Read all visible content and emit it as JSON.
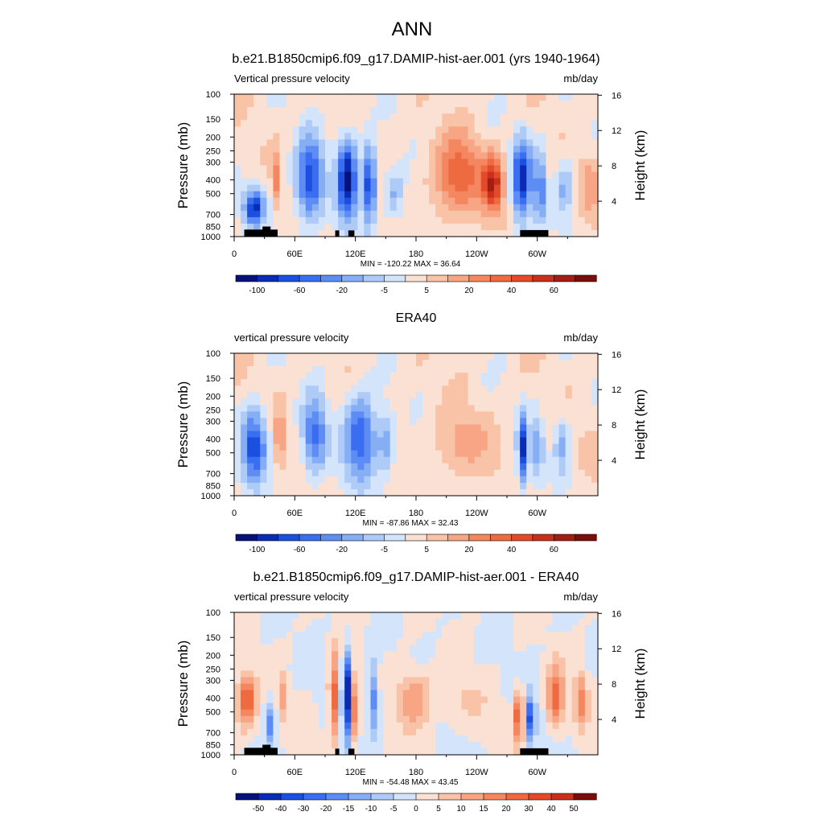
{
  "figure": {
    "title": "ANN"
  },
  "chart_data": [
    {
      "type": "heatmap",
      "title": "b.e21.B1850cmip6.f09_g17.DAMIP-hist-aer.001 (yrs 1940-1964)",
      "left_label": "Vertical pressure velocity",
      "right_label": "mb/day",
      "xlabel": "",
      "ylabel": "Pressure (mb)",
      "ylabel_right": "Height (km)",
      "x_ticks": [
        "0",
        "60E",
        "120E",
        "180",
        "120W",
        "60W"
      ],
      "x_tick_lon": [
        0,
        60,
        120,
        180,
        240,
        300
      ],
      "x_range": [
        0,
        360
      ],
      "y_ticks": [
        "100",
        "150",
        "200",
        "250",
        "300",
        "400",
        "500",
        "700",
        "850",
        "1000"
      ],
      "y_tick_p": [
        100,
        150,
        200,
        250,
        300,
        400,
        500,
        700,
        850,
        1000
      ],
      "y_range": [
        100,
        1000
      ],
      "y_scale": "log",
      "right_ticks": [
        "16",
        "12",
        "8",
        "4"
      ],
      "right_tick_km": [
        16,
        12,
        8,
        4
      ],
      "stats": "MIN = -120.22  MAX =  36.64",
      "min": -120.22,
      "max": 36.64,
      "colorbar_labels": [
        "-100",
        "-60",
        "-20",
        "-5",
        "5",
        "20",
        "40",
        "60"
      ],
      "colorbar_colors": [
        "#08107a",
        "#0a2bb4",
        "#1a4fe0",
        "#3b6df0",
        "#5e8cf5",
        "#86aef5",
        "#aecbf7",
        "#d4e4fa",
        "#fbe1d3",
        "#f9c3a8",
        "#f7a584",
        "#f48660",
        "#ee6a41",
        "#e4492a",
        "#c8301d",
        "#a41d13",
        "#7a0d0a"
      ],
      "topography_mask": true
    },
    {
      "type": "heatmap",
      "title": "ERA40",
      "left_label": "vertical pressure velocity",
      "right_label": "mb/day",
      "xlabel": "",
      "ylabel": "Pressure (mb)",
      "ylabel_right": "Height (km)",
      "x_ticks": [
        "0",
        "60E",
        "120E",
        "180",
        "120W",
        "60W"
      ],
      "x_tick_lon": [
        0,
        60,
        120,
        180,
        240,
        300
      ],
      "x_range": [
        0,
        360
      ],
      "y_ticks": [
        "100",
        "150",
        "200",
        "250",
        "300",
        "400",
        "500",
        "700",
        "850",
        "1000"
      ],
      "y_tick_p": [
        100,
        150,
        200,
        250,
        300,
        400,
        500,
        700,
        850,
        1000
      ],
      "y_range": [
        100,
        1000
      ],
      "y_scale": "log",
      "right_ticks": [
        "16",
        "12",
        "8",
        "4"
      ],
      "right_tick_km": [
        16,
        12,
        8,
        4
      ],
      "stats": "MIN = -87.86  MAX =  32.43",
      "min": -87.86,
      "max": 32.43,
      "colorbar_labels": [
        "-100",
        "-60",
        "-20",
        "-5",
        "5",
        "20",
        "40",
        "60"
      ],
      "colorbar_colors": [
        "#08107a",
        "#0a2bb4",
        "#1a4fe0",
        "#3b6df0",
        "#5e8cf5",
        "#86aef5",
        "#aecbf7",
        "#d4e4fa",
        "#fbe1d3",
        "#f9c3a8",
        "#f7a584",
        "#f48660",
        "#ee6a41",
        "#e4492a",
        "#c8301d",
        "#a41d13",
        "#7a0d0a"
      ],
      "topography_mask": false
    },
    {
      "type": "heatmap",
      "title": "b.e21.B1850cmip6.f09_g17.DAMIP-hist-aer.001 - ERA40",
      "left_label": "vertical pressure velocity",
      "right_label": "mb/day",
      "xlabel": "",
      "ylabel": "Pressure (mb)",
      "ylabel_right": "Height (km)",
      "x_ticks": [
        "0",
        "60E",
        "120E",
        "180",
        "120W",
        "60W"
      ],
      "x_tick_lon": [
        0,
        60,
        120,
        180,
        240,
        300
      ],
      "x_range": [
        0,
        360
      ],
      "y_ticks": [
        "100",
        "150",
        "200",
        "250",
        "300",
        "400",
        "500",
        "700",
        "850",
        "1000"
      ],
      "y_tick_p": [
        100,
        150,
        200,
        250,
        300,
        400,
        500,
        700,
        850,
        1000
      ],
      "y_range": [
        100,
        1000
      ],
      "y_scale": "log",
      "right_ticks": [
        "16",
        "12",
        "8",
        "4"
      ],
      "right_tick_km": [
        16,
        12,
        8,
        4
      ],
      "stats": "MIN = -54.48  MAX =  43.45",
      "min": -54.48,
      "max": 43.45,
      "colorbar_labels": [
        "-50",
        "-40",
        "-30",
        "-20",
        "-15",
        "-10",
        "-5",
        "0",
        "5",
        "10",
        "15",
        "20",
        "30",
        "40",
        "50"
      ],
      "colorbar_colors": [
        "#08107a",
        "#0a2bb4",
        "#1a4fe0",
        "#3b6df0",
        "#5e8cf5",
        "#86aef5",
        "#aecbf7",
        "#d4e4fa",
        "#fbe1d3",
        "#f9c3a8",
        "#f7a584",
        "#f48660",
        "#ee6a41",
        "#e4492a",
        "#c8301d",
        "#7a0d0a"
      ],
      "topography_mask": true
    }
  ]
}
